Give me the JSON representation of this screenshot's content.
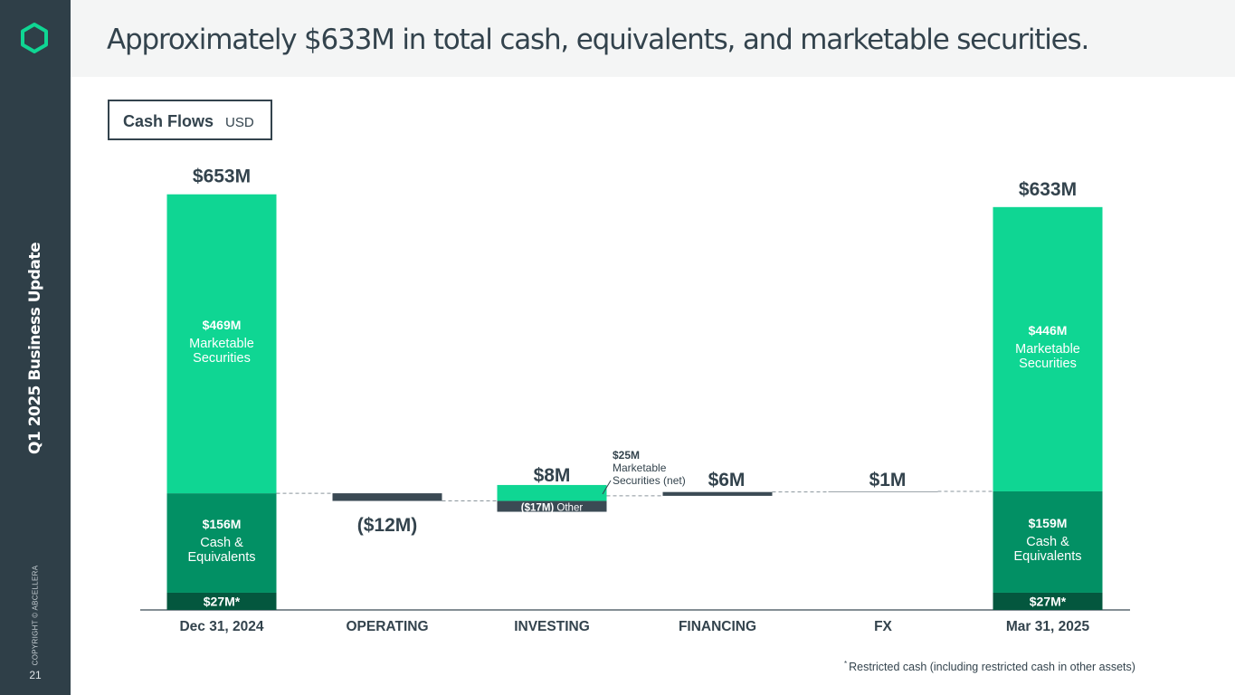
{
  "sidebar": {
    "title": "Q1 2025 Business Update",
    "copyright": "COPYRIGHT © ABCELLERA",
    "page_number": "21",
    "logo_icon": "hexagon-logo-icon",
    "logo_color": "#0fd693"
  },
  "header": {
    "headline": "Approximately $633M in total cash, equivalents, and marketable securities."
  },
  "legend_box": {
    "title": "Cash Flows",
    "unit": "USD"
  },
  "footnote": {
    "marker": "*",
    "text": "Restricted cash (including restricted cash in other assets)"
  },
  "colors": {
    "marketable": "#0fd693",
    "cash": "#029064",
    "restricted": "#04573e",
    "negative": "#3b4a54",
    "text_dark": "#33434d"
  },
  "chart_data": {
    "type": "bar",
    "subtype": "waterfall",
    "categories": [
      "Dec 31, 2024",
      "OPERATING",
      "INVESTING",
      "FINANCING",
      "FX",
      "Mar 31, 2025"
    ],
    "ylim": [
      0,
      700
    ],
    "start": {
      "total_label": "$653M",
      "segments": [
        {
          "value": 27,
          "label": "$27M*"
        },
        {
          "value": 156,
          "label": "$156M",
          "name": "Cash & Equivalents"
        },
        {
          "value": 469,
          "label": "$469M",
          "name": "Marketable Securities"
        }
      ]
    },
    "end": {
      "total_label": "$633M",
      "segments": [
        {
          "value": 27,
          "label": "$27M*"
        },
        {
          "value": 159,
          "label": "$159M",
          "name": "Cash & Equivalents"
        },
        {
          "value": 446,
          "label": "$446M",
          "name": "Marketable Securities"
        }
      ]
    },
    "flows": [
      {
        "category": "OPERATING",
        "base": 183,
        "value": -12,
        "label": "($12M)"
      },
      {
        "category": "INVESTING",
        "base": 171,
        "parts": [
          {
            "value": 25,
            "label": "$25M",
            "name": "Marketable Securities (net)"
          },
          {
            "value": -17,
            "label": "($17M)",
            "name": "Other"
          }
        ],
        "label": "$8M"
      },
      {
        "category": "FINANCING",
        "base": 179,
        "value": 6,
        "label": "$6M"
      },
      {
        "category": "FX",
        "base": 185,
        "value": 1,
        "label": "$1M"
      }
    ]
  }
}
